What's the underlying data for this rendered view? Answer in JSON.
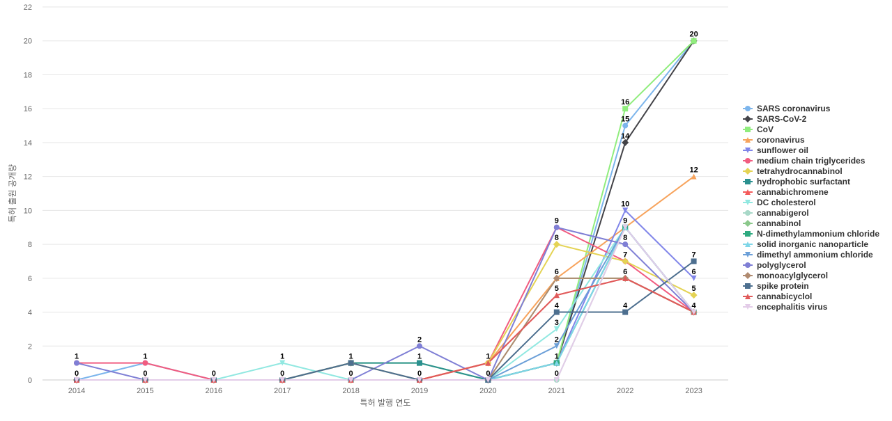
{
  "chart_data": {
    "type": "line",
    "title": "",
    "xlabel": "특허 발행 연도",
    "ylabel": "특허 출원 공개량",
    "ylim": [
      0,
      22
    ],
    "yticks": [
      0,
      2,
      4,
      6,
      8,
      10,
      12,
      14,
      16,
      18,
      20,
      22
    ],
    "grid": true,
    "legend_position": "right",
    "x": [
      "2014",
      "2015",
      "2016",
      "2017",
      "2018",
      "2019",
      "2020",
      "2021",
      "2022",
      "2023"
    ],
    "series": [
      {
        "name": "SARS coronavirus",
        "color": "#7cb5ec",
        "marker": "circle",
        "values": [
          0,
          1,
          0,
          0,
          0,
          0,
          0,
          1,
          15,
          20
        ]
      },
      {
        "name": "SARS-CoV-2",
        "color": "#434348",
        "marker": "diamond",
        "values": [
          0,
          0,
          0,
          0,
          0,
          0,
          0,
          1,
          14,
          20
        ]
      },
      {
        "name": "CoV",
        "color": "#90ed7d",
        "marker": "square",
        "values": [
          0,
          0,
          0,
          0,
          1,
          1,
          0,
          1,
          16,
          20
        ]
      },
      {
        "name": "coronavirus",
        "color": "#f7a35c",
        "marker": "triangle",
        "values": [
          0,
          0,
          0,
          0,
          0,
          0,
          1,
          6,
          9,
          12
        ]
      },
      {
        "name": "sunflower oil",
        "color": "#8085e9",
        "marker": "triangle-down",
        "values": [
          0,
          0,
          0,
          0,
          0,
          0,
          0,
          1,
          10,
          6
        ]
      },
      {
        "name": "medium chain triglycerides",
        "color": "#f15c80",
        "marker": "circle",
        "values": [
          1,
          1,
          0,
          0,
          0,
          0,
          1,
          9,
          7,
          4
        ]
      },
      {
        "name": "tetrahydrocannabinol",
        "color": "#e4d354",
        "marker": "diamond",
        "values": [
          0,
          0,
          0,
          0,
          0,
          0,
          1,
          8,
          7,
          5
        ]
      },
      {
        "name": "hydrophobic surfactant",
        "color": "#2b908f",
        "marker": "square",
        "values": [
          0,
          0,
          0,
          0,
          1,
          1,
          0,
          1,
          9,
          4
        ]
      },
      {
        "name": "cannabichromene",
        "color": "#f45b5b",
        "marker": "triangle",
        "values": [
          0,
          0,
          0,
          0,
          0,
          0,
          1,
          5,
          6,
          4
        ]
      },
      {
        "name": "DC cholesterol",
        "color": "#91e8e1",
        "marker": "triangle-down",
        "values": [
          0,
          0,
          0,
          1,
          0,
          0,
          0,
          3,
          9,
          4
        ]
      },
      {
        "name": "cannabigerol",
        "color": "#a8d8c8",
        "marker": "circle",
        "values": [
          0,
          0,
          0,
          0,
          0,
          0,
          0,
          0,
          9,
          4
        ]
      },
      {
        "name": "cannabinol",
        "color": "#8bc88b",
        "marker": "diamond",
        "values": [
          0,
          0,
          0,
          0,
          1,
          0,
          0,
          6,
          6,
          4
        ]
      },
      {
        "name": "N-dimethylammonium chloride",
        "color": "#2eaa80",
        "marker": "square",
        "values": [
          0,
          0,
          0,
          0,
          0,
          0,
          0,
          1,
          9,
          4
        ]
      },
      {
        "name": "solid inorganic nanoparticle",
        "color": "#7fd6e8",
        "marker": "triangle",
        "values": [
          0,
          0,
          0,
          0,
          0,
          0,
          0,
          1,
          9,
          4
        ]
      },
      {
        "name": "dimethyl ammonium chloride",
        "color": "#6b9fd8",
        "marker": "triangle-down",
        "values": [
          0,
          0,
          0,
          0,
          0,
          0,
          0,
          2,
          9,
          4
        ]
      },
      {
        "name": "polyglycerol",
        "color": "#7f7fd5",
        "marker": "circle",
        "values": [
          1,
          0,
          0,
          0,
          0,
          2,
          0,
          9,
          8,
          4
        ]
      },
      {
        "name": "monoacylglycerol",
        "color": "#b08a70",
        "marker": "diamond",
        "values": [
          0,
          0,
          0,
          0,
          1,
          0,
          0,
          6,
          6,
          4
        ]
      },
      {
        "name": "spike protein",
        "color": "#4d6f8f",
        "marker": "square",
        "values": [
          0,
          0,
          0,
          0,
          1,
          0,
          0,
          4,
          4,
          7
        ]
      },
      {
        "name": "cannabicyclol",
        "color": "#e05a5a",
        "marker": "triangle",
        "values": [
          0,
          0,
          0,
          0,
          0,
          0,
          1,
          5,
          6,
          4
        ]
      },
      {
        "name": "encephalitis virus",
        "color": "#e3cce8",
        "marker": "triangle-down",
        "values": [
          0,
          0,
          0,
          0,
          0,
          0,
          0,
          0,
          9,
          4
        ]
      }
    ],
    "extra_series_styles": {
      "dark_line": "#1f3f66",
      "purple_line": "#9b59b6",
      "gray_line": "#999999"
    },
    "data_labels": [
      {
        "x": "2014",
        "text": "1",
        "value": 1
      },
      {
        "x": "2014",
        "text": "0",
        "value": 0
      },
      {
        "x": "2015",
        "text": "1",
        "value": 1
      },
      {
        "x": "2015",
        "text": "0",
        "value": 0
      },
      {
        "x": "2016",
        "text": "0",
        "value": 0
      },
      {
        "x": "2017",
        "text": "1",
        "value": 1
      },
      {
        "x": "2017",
        "text": "0",
        "value": 0
      },
      {
        "x": "2018",
        "text": "1",
        "value": 1
      },
      {
        "x": "2018",
        "text": "0",
        "value": 0
      },
      {
        "x": "2019",
        "text": "2",
        "value": 2
      },
      {
        "x": "2019",
        "text": "1",
        "value": 1
      },
      {
        "x": "2019",
        "text": "0",
        "value": 0
      },
      {
        "x": "2020",
        "text": "1",
        "value": 1
      },
      {
        "x": "2020",
        "text": "0",
        "value": 0
      },
      {
        "x": "2021",
        "text": "9",
        "value": 9
      },
      {
        "x": "2021",
        "text": "8",
        "value": 8
      },
      {
        "x": "2021",
        "text": "6",
        "value": 6
      },
      {
        "x": "2021",
        "text": "5",
        "value": 5
      },
      {
        "x": "2021",
        "text": "4",
        "value": 4
      },
      {
        "x": "2021",
        "text": "3",
        "value": 3
      },
      {
        "x": "2021",
        "text": "2",
        "value": 2
      },
      {
        "x": "2021",
        "text": "1",
        "value": 1
      },
      {
        "x": "2021",
        "text": "0",
        "value": 0
      },
      {
        "x": "2022",
        "text": "16",
        "value": 16
      },
      {
        "x": "2022",
        "text": "15",
        "value": 15
      },
      {
        "x": "2022",
        "text": "14",
        "value": 14
      },
      {
        "x": "2022",
        "text": "10",
        "value": 10
      },
      {
        "x": "2022",
        "text": "9",
        "value": 9
      },
      {
        "x": "2022",
        "text": "8",
        "value": 8
      },
      {
        "x": "2022",
        "text": "7",
        "value": 7
      },
      {
        "x": "2022",
        "text": "6",
        "value": 6
      },
      {
        "x": "2022",
        "text": "4",
        "value": 4
      },
      {
        "x": "2023",
        "text": "20",
        "value": 20
      },
      {
        "x": "2023",
        "text": "12",
        "value": 12
      },
      {
        "x": "2023",
        "text": "7",
        "value": 7
      },
      {
        "x": "2023",
        "text": "6",
        "value": 6
      },
      {
        "x": "2023",
        "text": "5",
        "value": 5
      },
      {
        "x": "2023",
        "text": "4",
        "value": 4
      }
    ]
  }
}
